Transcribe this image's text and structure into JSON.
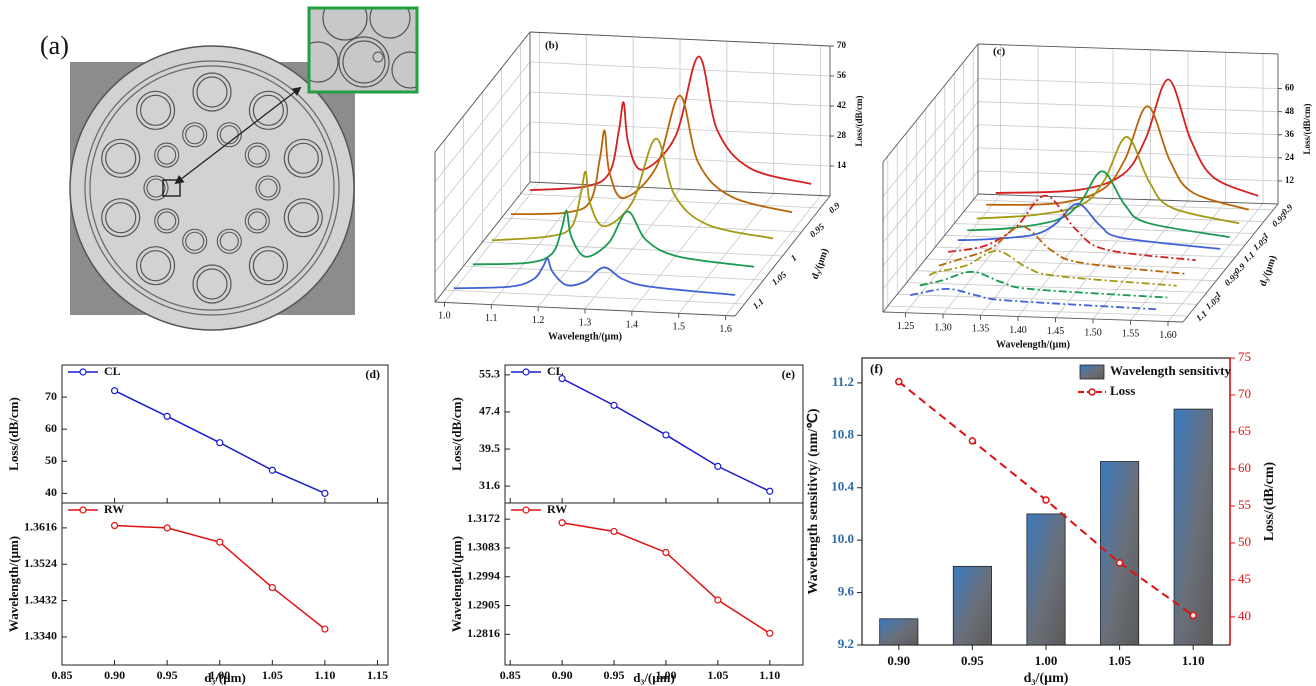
{
  "chart_data": [
    {
      "type": "image",
      "label": "(a)"
    },
    {
      "type": "waterfall3d",
      "label": "(b)",
      "xlabel": "Wavelength/(μm)",
      "ylabel": "d₃/(μm)",
      "zlabel": "Loss/(dB/cm)",
      "xlim": [
        0.98,
        1.62
      ],
      "xticks": [
        {
          "value": 1.0,
          "label": "1.0"
        },
        1.1,
        1.2,
        1.3,
        1.4,
        1.5,
        1.6
      ],
      "zlim": [
        0,
        70
      ],
      "zticks": [
        14,
        28,
        42,
        56,
        70
      ],
      "ycategories": [
        "0.9",
        "0.95",
        "1",
        "1.05",
        "1.1"
      ],
      "series": [
        {
          "color": "#d42020",
          "x": [
            1.0,
            1.12,
            1.17,
            1.19,
            1.2,
            1.21,
            1.24,
            1.31,
            1.36,
            1.4,
            1.47,
            1.6
          ],
          "values": [
            2,
            5,
            12,
            32,
            45,
            26,
            14,
            30,
            68,
            34,
            17,
            11
          ]
        },
        {
          "color": "#b8650a",
          "x": [
            1.0,
            1.12,
            1.17,
            1.19,
            1.2,
            1.21,
            1.24,
            1.31,
            1.36,
            1.4,
            1.47,
            1.6
          ],
          "values": [
            2,
            4,
            10,
            30,
            43,
            24,
            12,
            27,
            61,
            30,
            15,
            9
          ]
        },
        {
          "color": "#a39a12",
          "x": [
            1.0,
            1.12,
            1.17,
            1.19,
            1.2,
            1.21,
            1.24,
            1.3,
            1.35,
            1.39,
            1.46,
            1.6
          ],
          "values": [
            1,
            4,
            9,
            25,
            35,
            20,
            10,
            22,
            52,
            26,
            13,
            8
          ]
        },
        {
          "color": "#1a9a50",
          "x": [
            1.0,
            1.12,
            1.17,
            1.19,
            1.2,
            1.21,
            1.24,
            1.29,
            1.33,
            1.37,
            1.44,
            1.6
          ],
          "values": [
            1,
            3,
            8,
            20,
            28,
            16,
            7,
            14,
            29,
            16,
            9,
            6
          ]
        },
        {
          "color": "#4060d8",
          "x": [
            1.0,
            1.12,
            1.17,
            1.19,
            1.2,
            1.21,
            1.24,
            1.28,
            1.32,
            1.36,
            1.42,
            1.6
          ],
          "values": [
            1,
            3,
            7,
            13,
            17,
            11,
            5,
            7,
            14,
            9,
            6,
            4
          ]
        }
      ]
    },
    {
      "type": "waterfall3d",
      "label": "(c)",
      "xlabel": "Wavelength/(μm)",
      "ylabel": "d₃/(μm)",
      "zlabel": "Loss/(dB/cm)",
      "xlim": [
        1.22,
        1.62
      ],
      "xticks": [
        1.25,
        {
          "value": 1.3,
          "label": "1.30"
        },
        1.35,
        {
          "value": 1.4,
          "label": "1.40"
        },
        1.45,
        {
          "value": 1.5,
          "label": "1.50"
        },
        1.55,
        {
          "value": 1.6,
          "label": "1.60"
        }
      ],
      "zlim": [
        0,
        78
      ],
      "zticks": [
        12,
        24,
        36,
        48,
        60
      ],
      "ycategories": [
        "0.9",
        "0.95",
        "1",
        "1.05",
        "1.1",
        "0.9",
        "0.95",
        "1",
        "1.05",
        "1.1"
      ],
      "series": [
        {
          "color": "#d42020",
          "dashed": false,
          "x": [
            1.25,
            1.36,
            1.42,
            1.45,
            1.48,
            1.51,
            1.54,
            1.6
          ],
          "values": [
            4,
            7,
            16,
            35,
            66,
            35,
            16,
            7
          ]
        },
        {
          "color": "#b8650a",
          "dashed": false,
          "x": [
            1.25,
            1.345,
            1.405,
            1.435,
            1.465,
            1.495,
            1.525,
            1.6
          ],
          "values": [
            4,
            6,
            14,
            30,
            58,
            30,
            14,
            6
          ]
        },
        {
          "color": "#a39a12",
          "dashed": false,
          "x": [
            1.25,
            1.33,
            1.39,
            1.42,
            1.45,
            1.48,
            1.51,
            1.6
          ],
          "values": [
            3,
            6,
            12,
            25,
            48,
            25,
            12,
            5
          ]
        },
        {
          "color": "#1a9a50",
          "dashed": false,
          "x": [
            1.25,
            1.31,
            1.37,
            1.4,
            1.43,
            1.46,
            1.49,
            1.6
          ],
          "values": [
            3,
            5,
            10,
            19,
            36,
            19,
            10,
            4
          ]
        },
        {
          "color": "#4060d8",
          "dashed": false,
          "x": [
            1.25,
            1.29,
            1.35,
            1.38,
            1.41,
            1.44,
            1.47,
            1.6
          ],
          "values": [
            4,
            5,
            8,
            14,
            25,
            14,
            8,
            4
          ]
        },
        {
          "color": "#d42020",
          "dashed": true,
          "x": [
            1.25,
            1.3,
            1.34,
            1.38,
            1.42,
            1.46,
            1.58
          ],
          "values": [
            4,
            8,
            18,
            35,
            18,
            8,
            4
          ]
        },
        {
          "color": "#b8650a",
          "dashed": true,
          "x": [
            1.25,
            1.28,
            1.32,
            1.36,
            1.4,
            1.44,
            1.58
          ],
          "values": [
            3,
            7,
            13,
            25,
            13,
            7,
            3
          ]
        },
        {
          "color": "#a39a12",
          "dashed": true,
          "x": [
            1.25,
            1.26,
            1.3,
            1.34,
            1.38,
            1.42,
            1.58
          ],
          "values": [
            4,
            6,
            10,
            18,
            10,
            6,
            3
          ]
        },
        {
          "color": "#1a9a50",
          "dashed": true,
          "x": [
            1.25,
            1.28,
            1.32,
            1.36,
            1.4,
            1.58
          ],
          "values": [
            5,
            8,
            13,
            8,
            5,
            3
          ]
        },
        {
          "color": "#4060d8",
          "dashed": true,
          "x": [
            1.25,
            1.26,
            1.3,
            1.34,
            1.38,
            1.58
          ],
          "values": [
            6,
            7,
            10,
            7,
            5,
            3
          ]
        }
      ]
    },
    {
      "type": "dual_line",
      "label": "(d)",
      "xlabel": "d₃/(μm)",
      "x": [
        0.9,
        0.95,
        1.0,
        1.05,
        1.1
      ],
      "xlim": [
        0.85,
        1.16
      ],
      "xticks": [
        0.85,
        {
          "value": 0.9,
          "label": "0.90"
        },
        0.95,
        {
          "value": 1.0,
          "label": "1.00"
        },
        1.05,
        {
          "value": 1.1,
          "label": "1.10"
        },
        1.15
      ],
      "panels": [
        {
          "ylabel": "Loss/(dB/cm)",
          "ylim": [
            37,
            80
          ],
          "yticks": [
            40,
            50,
            60,
            70
          ],
          "series": [
            {
              "name": "CL",
              "color": "#1a1ad0",
              "values": [
                72,
                64,
                55.8,
                47.2,
                40
              ]
            }
          ]
        },
        {
          "ylabel": "Wavelength/(μm)",
          "ylim": [
            1.3269,
            1.3679
          ],
          "yticks": [
            {
              "value": 1.334,
              "label": "1.3340"
            },
            1.3432,
            1.3524,
            1.3616
          ],
          "series": [
            {
              "name": "RW",
              "color": "#e01010",
              "values": [
                1.3622,
                1.3616,
                1.358,
                1.3465,
                1.336
              ]
            }
          ]
        }
      ]
    },
    {
      "type": "dual_line",
      "label": "(e)",
      "xlabel": "d₃/(μm)",
      "x": [
        0.9,
        0.95,
        1.0,
        1.05,
        1.1
      ],
      "xlim": [
        0.845,
        1.132
      ],
      "xticks": [
        0.85,
        {
          "value": 0.9,
          "label": "0.90"
        },
        0.95,
        {
          "value": 1.0,
          "label": "1.00"
        },
        1.05,
        {
          "value": 1.1,
          "label": "1.10"
        }
      ],
      "panels": [
        {
          "ylabel": "Loss/(dB/cm)",
          "ylim": [
            28,
            57.4
          ],
          "yticks": [
            31.6,
            39.5,
            47.4,
            55.3
          ],
          "series": [
            {
              "name": "CL",
              "color": "#1a1ad0",
              "values": [
                54.5,
                48.8,
                42.5,
                35.8,
                30.5
              ]
            }
          ]
        },
        {
          "ylabel": "Wavelength/(μm)",
          "ylim": [
            1.2721,
            1.3222
          ],
          "yticks": [
            1.2816,
            1.2905,
            1.2994,
            1.3083,
            1.3172
          ],
          "series": [
            {
              "name": "RW",
              "color": "#e01010",
              "values": [
                1.3161,
                1.3134,
                1.3069,
                1.2922,
                1.2819
              ]
            }
          ]
        }
      ]
    },
    {
      "type": "bar_line",
      "label": "(f)",
      "xlabel": "d₃/(μm)",
      "ylabel": "Wavelength sensitivty/ (nm/℃)",
      "y2label": "Loss/(dB/cm)",
      "categories": [
        "0.90",
        "0.95",
        "1.00",
        "1.05",
        "1.10"
      ],
      "ylim": [
        9.2,
        11.39
      ],
      "yticks": [
        9.2,
        9.6,
        {
          "value": 10,
          "label": "10.0"
        },
        10.4,
        10.8,
        11.2
      ],
      "y2lim": [
        36.2,
        75
      ],
      "y2ticks": [
        40,
        45,
        50,
        55,
        60,
        65,
        70,
        75
      ],
      "series": [
        {
          "name": "Wavelength sensitivty",
          "color": "#3a7ac0",
          "values": [
            9.4,
            9.8,
            10.2,
            10.6,
            11.0
          ]
        },
        {
          "name": "Loss",
          "color": "#e01010",
          "axis": "y2",
          "values": [
            71.8,
            63.8,
            55.8,
            47.3,
            40.2
          ]
        }
      ]
    }
  ]
}
